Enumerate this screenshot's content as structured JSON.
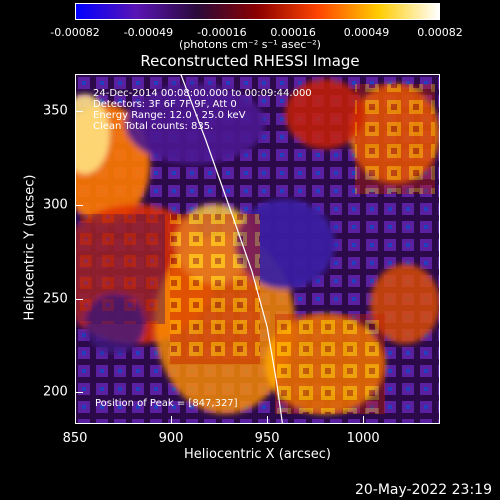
{
  "colorbar": {
    "ticks": [
      "-0.00082",
      "-0.00049",
      "-0.00016",
      "0.00016",
      "0.00049",
      "0.00082"
    ],
    "tick_values": [
      -0.00082,
      -0.00049,
      -0.00016,
      0.00016,
      0.00049,
      0.00082
    ],
    "units": "(photons cm⁻² s⁻¹ asec⁻²)",
    "colors": [
      "#0000ff",
      "#5a14b4",
      "#2a0a3a",
      "#8b0000",
      "#ff4400",
      "#ffcc00",
      "#ffffff"
    ]
  },
  "chart_data": {
    "type": "heatmap",
    "title": "Reconstructed RHESSI Image",
    "xlabel": "Heliocentric X (arcsec)",
    "ylabel": "Heliocentric Y (arcsec)",
    "xlim": [
      850,
      1040
    ],
    "ylim": [
      183,
      370
    ],
    "x_ticks": [
      850,
      900,
      950,
      1000
    ],
    "y_ticks": [
      200,
      250,
      300,
      350
    ],
    "limb_curve": [
      [
        905,
        370
      ],
      [
        918,
        335
      ],
      [
        930,
        300
      ],
      [
        942,
        265
      ],
      [
        950,
        235
      ],
      [
        955,
        205
      ],
      [
        958,
        183
      ]
    ],
    "annotations": [
      "24-Dec-2014 00:08:00.000 to 00:09:44.000",
      "Detectors: 3F 6F 7F 9F, Att 0",
      "Energy Range: 12.0 - 25.0 keV",
      "Clean    Total counts: 835."
    ],
    "peak_label": "Position of Peak = [847,327]",
    "peak": [
      847,
      327
    ]
  },
  "date_stamp": "20-May-2022 23:19"
}
